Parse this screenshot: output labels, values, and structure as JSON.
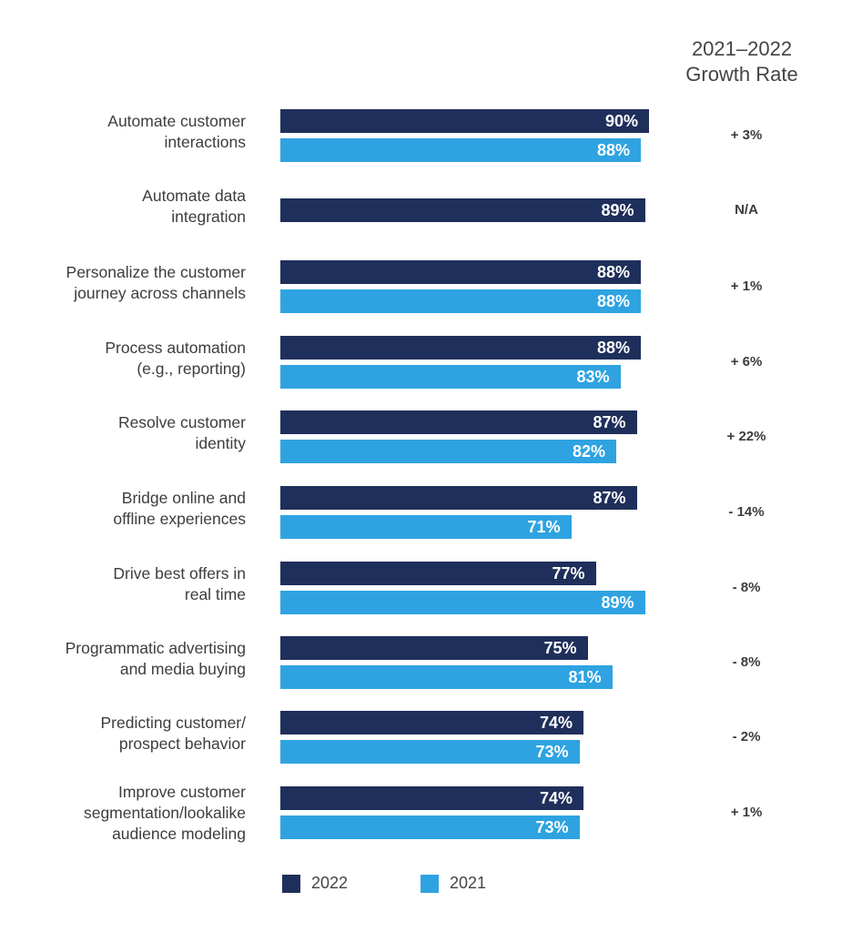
{
  "chart_data": {
    "type": "bar",
    "orientation": "horizontal",
    "title": "2021–2022 Growth Rate",
    "title_lines": [
      "2021–2022",
      "Growth Rate"
    ],
    "categories": [
      {
        "lines": [
          "Automate customer",
          "interactions"
        ]
      },
      {
        "lines": [
          "Automate data",
          "integration"
        ]
      },
      {
        "lines": [
          "Personalize the customer",
          "journey across channels"
        ]
      },
      {
        "lines": [
          "Process automation",
          "(e.g., reporting)"
        ]
      },
      {
        "lines": [
          "Resolve customer",
          "identity"
        ]
      },
      {
        "lines": [
          "Bridge online and",
          "offline experiences"
        ]
      },
      {
        "lines": [
          "Drive best offers in",
          "real time"
        ]
      },
      {
        "lines": [
          "Programmatic advertising",
          "and media buying"
        ]
      },
      {
        "lines": [
          "Predicting customer/",
          "prospect behavior"
        ]
      },
      {
        "lines": [
          "Improve customer",
          "segmentation/lookalike",
          "audience modeling"
        ]
      }
    ],
    "series": [
      {
        "name": "2022",
        "color": "#1f2f5b",
        "values": [
          90,
          89,
          88,
          88,
          87,
          87,
          77,
          75,
          74,
          74
        ],
        "labels": [
          "90%",
          "89%",
          "88%",
          "88%",
          "87%",
          "87%",
          "77%",
          "75%",
          "74%",
          "74%"
        ]
      },
      {
        "name": "2021",
        "color": "#2fa3e1",
        "values": [
          88,
          null,
          88,
          83,
          82,
          71,
          89,
          81,
          73,
          73
        ],
        "labels": [
          "88%",
          null,
          "88%",
          "83%",
          "82%",
          "71%",
          "89%",
          "81%",
          "73%",
          "73%"
        ]
      }
    ],
    "growth_rates": [
      "+ 3%",
      "N/A",
      "+ 1%",
      "+ 6%",
      "+ 22%",
      "- 14%",
      "- 8%",
      "- 8%",
      "- 2%",
      "+ 1%"
    ],
    "xlim": [
      0,
      100
    ],
    "grid": false,
    "legend": "bottom"
  }
}
